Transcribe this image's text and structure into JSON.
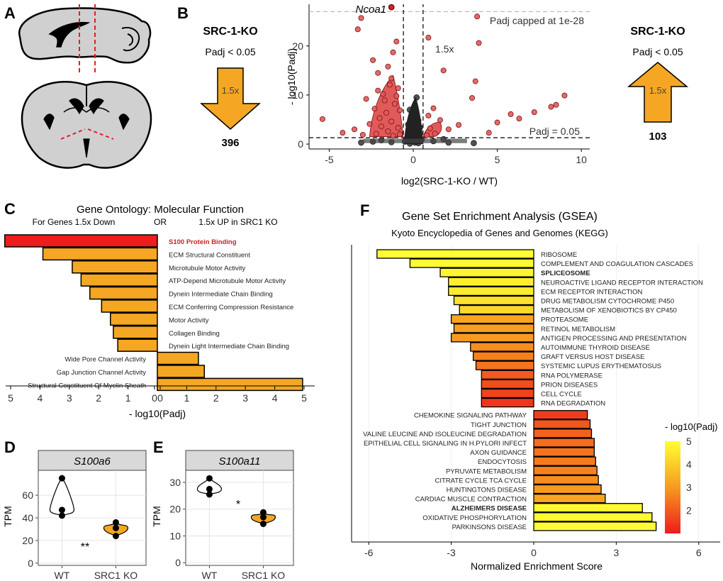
{
  "panels": {
    "A": {
      "letter": "A"
    },
    "B": {
      "letter": "B",
      "left": {
        "title": "SRC-1-KO",
        "padj": "Padj < 0.05",
        "fold": "1.5x",
        "count": "396",
        "direction": "down"
      },
      "right": {
        "title": "SRC-1-KO",
        "padj": "Padj < 0.05",
        "fold": "1.5x",
        "count": "103",
        "direction": "up"
      },
      "annotations": {
        "gene": "Ncoa1",
        "cap": "Padj capped at 1e-28",
        "fold_line": "1.5x",
        "padj_line": "Padj = 0.05"
      }
    },
    "C": {
      "letter": "C",
      "title": "Gene Ontology: Molecular Function",
      "subtitle_left": "For Genes 1.5x Down",
      "subtitle_or": "OR",
      "subtitle_right": "1.5x UP in SRC1 KO"
    },
    "D": {
      "letter": "D",
      "gene": "S100a6",
      "significance": "**"
    },
    "E": {
      "letter": "E",
      "gene": "S100a11",
      "significance": "*"
    },
    "F": {
      "letter": "F",
      "title": "Gene Set Enrichment Analysis (GSEA)",
      "subtitle": "Kyoto Encyclopedia of Genes and Genomes (KEGG)"
    }
  },
  "colors": {
    "orange": "#f5a623",
    "red": "#ee1c1c",
    "yellow": "#ffff33",
    "grey_panel": "#d9d9d9",
    "point_red": "#e05a5a"
  },
  "chart_data": [
    {
      "id": "volcano",
      "type": "scatter",
      "xlabel": "log2(SRC-1-KO / WT)",
      "ylabel": "- log10(Padj)",
      "xlim": [
        -6.2,
        10.5
      ],
      "ylim": [
        -1,
        28.5
      ],
      "xticks": [
        -5,
        0,
        5,
        10
      ],
      "yticks": [
        0,
        10,
        20
      ],
      "threshold_x": [
        -0.585,
        0.585
      ],
      "threshold_y": [
        1.3,
        27
      ],
      "points_significant": [
        [
          -1.3,
          27.9
        ],
        [
          -3.1,
          25.7
        ],
        [
          -3.3,
          23.4
        ],
        [
          -1.0,
          20.9
        ],
        [
          -1.2,
          18.7
        ],
        [
          3.8,
          26.0
        ],
        [
          3.9,
          20.6
        ],
        [
          0.9,
          21.7
        ],
        [
          -2.4,
          17.1
        ],
        [
          -1.5,
          15.8
        ],
        [
          -2.1,
          14.5
        ],
        [
          1.8,
          15.0
        ],
        [
          3.7,
          12.8
        ],
        [
          3.5,
          9.4
        ],
        [
          8.2,
          7.6
        ],
        [
          8.5,
          8.0
        ],
        [
          9.0,
          9.9
        ],
        [
          5.8,
          6.1
        ],
        [
          6.3,
          5.2
        ],
        [
          5.0,
          4.4
        ],
        [
          7.2,
          6.5
        ],
        [
          4.5,
          2.3
        ],
        [
          2.7,
          3.9
        ],
        [
          2.1,
          3.0
        ],
        [
          -5.4,
          5.1
        ],
        [
          -3.5,
          3.0
        ],
        [
          -4.2,
          2.3
        ],
        [
          -2.8,
          9.2
        ],
        [
          -1.4,
          12.1
        ],
        [
          -1.8,
          10.2
        ],
        [
          -0.9,
          11.4
        ],
        [
          -2.3,
          7.2
        ],
        [
          -1.1,
          8.2
        ],
        [
          -1.6,
          6.4
        ],
        [
          -2.0,
          5.3
        ],
        [
          -1.3,
          4.6
        ],
        [
          -0.8,
          6.9
        ],
        [
          -2.6,
          4.1
        ],
        [
          -1.9,
          3.6
        ],
        [
          -0.9,
          3.3
        ],
        [
          -1.5,
          2.6
        ],
        [
          -2.2,
          2.1
        ],
        [
          -0.8,
          2.0
        ],
        [
          -1.2,
          1.7
        ],
        [
          -3.0,
          1.9
        ],
        [
          1.0,
          3.2
        ],
        [
          1.3,
          2.1
        ],
        [
          0.8,
          1.8
        ],
        [
          1.6,
          4.9
        ],
        [
          0.9,
          5.8
        ],
        [
          1.2,
          7.3
        ],
        [
          -1.7,
          8.9
        ],
        [
          -1.0,
          9.8
        ],
        [
          -2.1,
          10.9
        ],
        [
          -1.3,
          13.4
        ]
      ],
      "points_nonsig": [
        [
          0.2,
          9.5
        ],
        [
          -0.2,
          7.0
        ],
        [
          0.1,
          6.1
        ],
        [
          0.3,
          4.8
        ],
        [
          -0.3,
          4.0
        ],
        [
          0.4,
          3.4
        ],
        [
          -0.1,
          2.8
        ],
        [
          0.0,
          2.2
        ],
        [
          0.2,
          1.6
        ],
        [
          -0.4,
          1.1
        ],
        [
          0.5,
          0.9
        ],
        [
          -0.5,
          0.5
        ],
        [
          0.1,
          0.3
        ],
        [
          -0.2,
          0.1
        ],
        [
          0.3,
          0.2
        ],
        [
          1.2,
          0.6
        ],
        [
          -1.3,
          0.4
        ],
        [
          2.1,
          0.3
        ],
        [
          -2.4,
          0.5
        ],
        [
          3.6,
          0.2
        ],
        [
          -3.1,
          0.3
        ],
        [
          1.8,
          1.0
        ],
        [
          -1.9,
          0.8
        ]
      ]
    },
    {
      "id": "go",
      "type": "bar",
      "xlabel": "- log10(Padj)",
      "xticks_left": [
        5,
        4,
        3,
        2,
        1,
        0
      ],
      "xticks_right": [
        0,
        1,
        2,
        3,
        4,
        5
      ],
      "down": [
        {
          "label": "S100 Protein Binding",
          "value": 5.2,
          "highlight": true
        },
        {
          "label": "ECM Structural Constituent",
          "value": 3.9
        },
        {
          "label": "Microtubule Motor Activity",
          "value": 2.9
        },
        {
          "label": "ATP-Depend Microtubule Motor Activity",
          "value": 2.6
        },
        {
          "label": "Dynein Intermediate Chain Binding",
          "value": 2.3
        },
        {
          "label": "ECM Conferring Compression Resistance",
          "value": 1.9
        },
        {
          "label": "Motor Activity",
          "value": 1.6
        },
        {
          "label": "Collagen Binding",
          "value": 1.5
        },
        {
          "label": "Dynein Light Intermediate Chain Binding",
          "value": 1.35
        }
      ],
      "up": [
        {
          "label": "Wide Pore Channel Activity",
          "value": 1.4
        },
        {
          "label": "Gap Junction Channel Activity",
          "value": 1.6
        },
        {
          "label": "Structural Constituent Of Myelin Sheath",
          "value": 4.95
        }
      ]
    },
    {
      "id": "violin_s100a6",
      "type": "scatter",
      "ylabel": "TPM",
      "categories": [
        "WT",
        "SRC1 KO"
      ],
      "ylim": [
        -2,
        82
      ],
      "yticks": [
        0,
        20,
        40,
        60
      ],
      "points": {
        "WT": [
          75,
          47,
          42
        ],
        "SRC1 KO": [
          36,
          31,
          24
        ]
      }
    },
    {
      "id": "violin_s100a11",
      "type": "scatter",
      "ylabel": "TPM",
      "categories": [
        "WT",
        "SRC1 KO"
      ],
      "ylim": [
        -1,
        34.5
      ],
      "yticks": [
        0,
        10,
        20,
        30
      ],
      "points": {
        "WT": [
          31.5,
          27.5,
          25.5
        ],
        "SRC1 KO": [
          18.8,
          17.0,
          14.5
        ]
      }
    },
    {
      "id": "gsea",
      "type": "bar",
      "xlabel": "Normalized Enrichment Score",
      "xlim": [
        -7,
        6.5
      ],
      "xticks": [
        -6,
        -3,
        0,
        3,
        6
      ],
      "legend": {
        "title": "- log10(Padj)",
        "ticks": [
          2,
          3,
          4,
          5
        ],
        "range": [
          1,
          5
        ]
      },
      "neg": [
        {
          "label": "RIBOSOME",
          "nes": -5.7,
          "lp": 5.0
        },
        {
          "label": "COMPLEMENT AND COAGULATION CASCADES",
          "nes": -4.5,
          "lp": 4.9
        },
        {
          "label": "SPLICEOSOME",
          "nes": -3.4,
          "lp": 4.8,
          "bold": true
        },
        {
          "label": "NEUROACTIVE LIGAND RECEPTOR INTERACTION",
          "nes": -3.1,
          "lp": 4.7
        },
        {
          "label": "ECM RECEPTOR INTERACTION",
          "nes": -3.1,
          "lp": 4.6
        },
        {
          "label": "DRUG METABOLISM CYTOCHROME P450",
          "nes": -2.9,
          "lp": 4.4
        },
        {
          "label": "METABOLISM OF XENOBIOTICS BY CP450",
          "nes": -2.7,
          "lp": 4.2
        },
        {
          "label": "PROTEASOME",
          "nes": -3.0,
          "lp": 3.2
        },
        {
          "label": "RETINOL METABOLISM",
          "nes": -2.9,
          "lp": 3.1
        },
        {
          "label": "ANTIGEN PROCESSING AND PRESENTATION",
          "nes": -3.0,
          "lp": 3.0
        },
        {
          "label": "AUTOIMMUNE THYROID DISEASE",
          "nes": -2.3,
          "lp": 2.8
        },
        {
          "label": "GRAFT VERSUS HOST DISEASE",
          "nes": -2.2,
          "lp": 2.6
        },
        {
          "label": "SYSTEMIC LUPUS ERYTHEMATOSUS",
          "nes": -2.1,
          "lp": 2.4
        },
        {
          "label": "RNA POLYMERASE",
          "nes": -1.9,
          "lp": 2.0
        },
        {
          "label": "PRION DISEASES",
          "nes": -1.9,
          "lp": 1.8
        },
        {
          "label": "CELL CYCLE",
          "nes": -1.9,
          "lp": 1.6
        },
        {
          "label": "RNA DEGRADATION",
          "nes": -1.9,
          "lp": 1.4
        }
      ],
      "pos": [
        {
          "label": "CHEMOKINE SIGNALING PATHWAY",
          "nes": 1.95,
          "lp": 1.5
        },
        {
          "label": "TIGHT JUNCTION",
          "nes": 2.05,
          "lp": 1.9
        },
        {
          "label": "VALINE LEUCINE AND ISOLEUCINE DEGRADATION",
          "nes": 2.1,
          "lp": 2.1
        },
        {
          "label": "EPITHELIAL CELL SIGNALING IN H.PYLORI INFECT",
          "nes": 2.2,
          "lp": 2.3
        },
        {
          "label": "AXON GUIDANCE",
          "nes": 2.2,
          "lp": 2.4
        },
        {
          "label": "ENDOCYTOSIS",
          "nes": 2.25,
          "lp": 2.5
        },
        {
          "label": "PYRUVATE METABOLISM",
          "nes": 2.3,
          "lp": 2.6
        },
        {
          "label": "CITRATE CYCLE TCA CYCLE",
          "nes": 2.35,
          "lp": 2.8
        },
        {
          "label": "HUNTINGTONS DISEASE",
          "nes": 2.45,
          "lp": 3.0
        },
        {
          "label": "CARDIAC MUSCLE CONTRACTION",
          "nes": 2.6,
          "lp": 3.2
        },
        {
          "label": "ALZHEIMERS DISEASE",
          "nes": 3.95,
          "lp": 4.9,
          "bold": true
        },
        {
          "label": "OXIDATIVE PHOSPHORYLATION",
          "nes": 4.3,
          "lp": 4.9
        },
        {
          "label": "PARKINSONS DISEASE",
          "nes": 4.45,
          "lp": 4.9
        }
      ]
    }
  ]
}
